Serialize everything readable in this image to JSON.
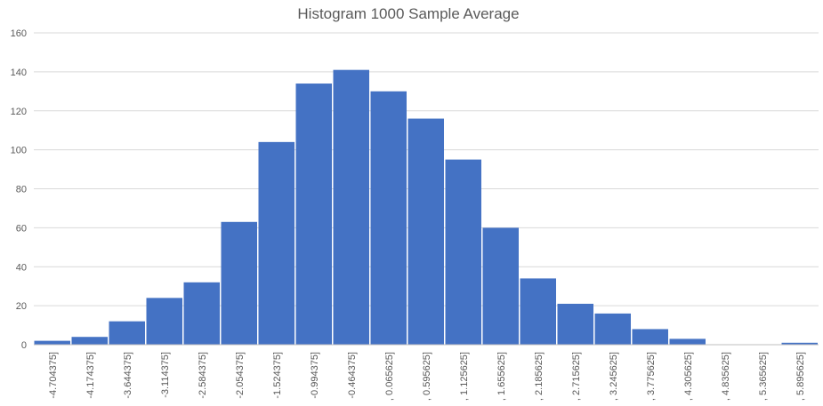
{
  "chart_data": {
    "type": "bar",
    "title": "Histogram 1000 Sample Average",
    "xlabel": "",
    "ylabel": "",
    "ylim": [
      0,
      160
    ],
    "yticks": [
      0,
      20,
      40,
      60,
      80,
      100,
      120,
      140,
      160
    ],
    "grid": true,
    "legend": "none",
    "bar_color": "#4472C4",
    "grid_color": "#D9D9D9",
    "categories": [
      "-4.704375]",
      "-4.174375]",
      "-3.644375]",
      "-3.114375]",
      "-2.584375]",
      "-2.054375]",
      "-1.524375]",
      "-0.994375]",
      "-0.464375]",
      ", 0.065625]",
      ", 0.595625]",
      ", 1.125625]",
      ", 1.655625]",
      ", 2.185625]",
      ", 2.715625]",
      ", 3.245625]",
      ", 3.775625]",
      ", 4.305625]",
      ", 4.835625]",
      ", 5.365625]",
      ", 5.895625]"
    ],
    "values": [
      2,
      4,
      12,
      24,
      32,
      63,
      104,
      134,
      141,
      130,
      116,
      95,
      60,
      34,
      21,
      16,
      8,
      3,
      0,
      0,
      1
    ]
  }
}
